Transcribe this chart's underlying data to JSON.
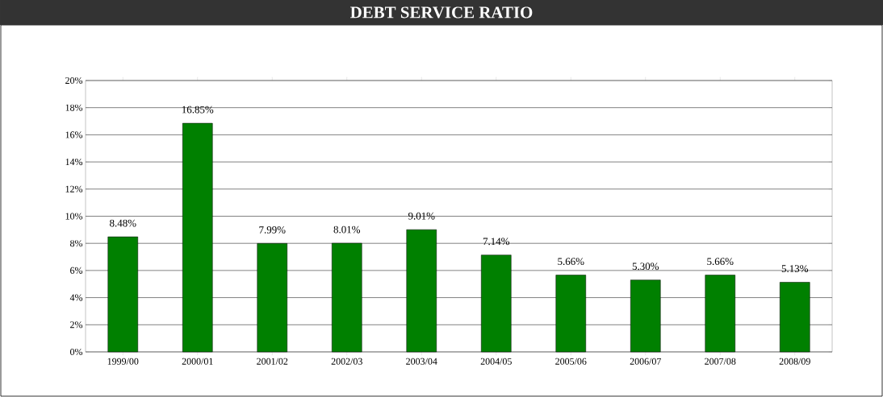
{
  "chart_data": {
    "type": "bar",
    "title": "DEBT SERVICE RATIO",
    "categories": [
      "1999/00",
      "2000/01",
      "2001/02",
      "2002/03",
      "2003/04",
      "2004/05",
      "2005/06",
      "2006/07",
      "2007/08",
      "2008/09"
    ],
    "values": [
      8.48,
      16.85,
      7.99,
      8.01,
      9.01,
      7.14,
      5.66,
      5.3,
      5.66,
      5.13
    ],
    "value_labels": [
      "8.48%",
      "16.85%",
      "7.99%",
      "8.01%",
      "9.01%",
      "7.14%",
      "5.66%",
      "5.30%",
      "5.66%",
      "5.13%"
    ],
    "color": "#008000",
    "ylim": [
      0,
      20
    ],
    "yticks": [
      {
        "value": 0,
        "label": "0%"
      },
      {
        "value": 2,
        "label": "2%"
      },
      {
        "value": 4,
        "label": "4%"
      },
      {
        "value": 6,
        "label": "6%"
      },
      {
        "value": 8,
        "label": "8%"
      },
      {
        "value": 10,
        "label": "10%"
      },
      {
        "value": 12,
        "label": "12%"
      },
      {
        "value": 14,
        "label": "14%"
      },
      {
        "value": 16,
        "label": "16%"
      },
      {
        "value": 18,
        "label": "18%"
      },
      {
        "value": 20,
        "label": "20%"
      }
    ],
    "grid": "y"
  }
}
